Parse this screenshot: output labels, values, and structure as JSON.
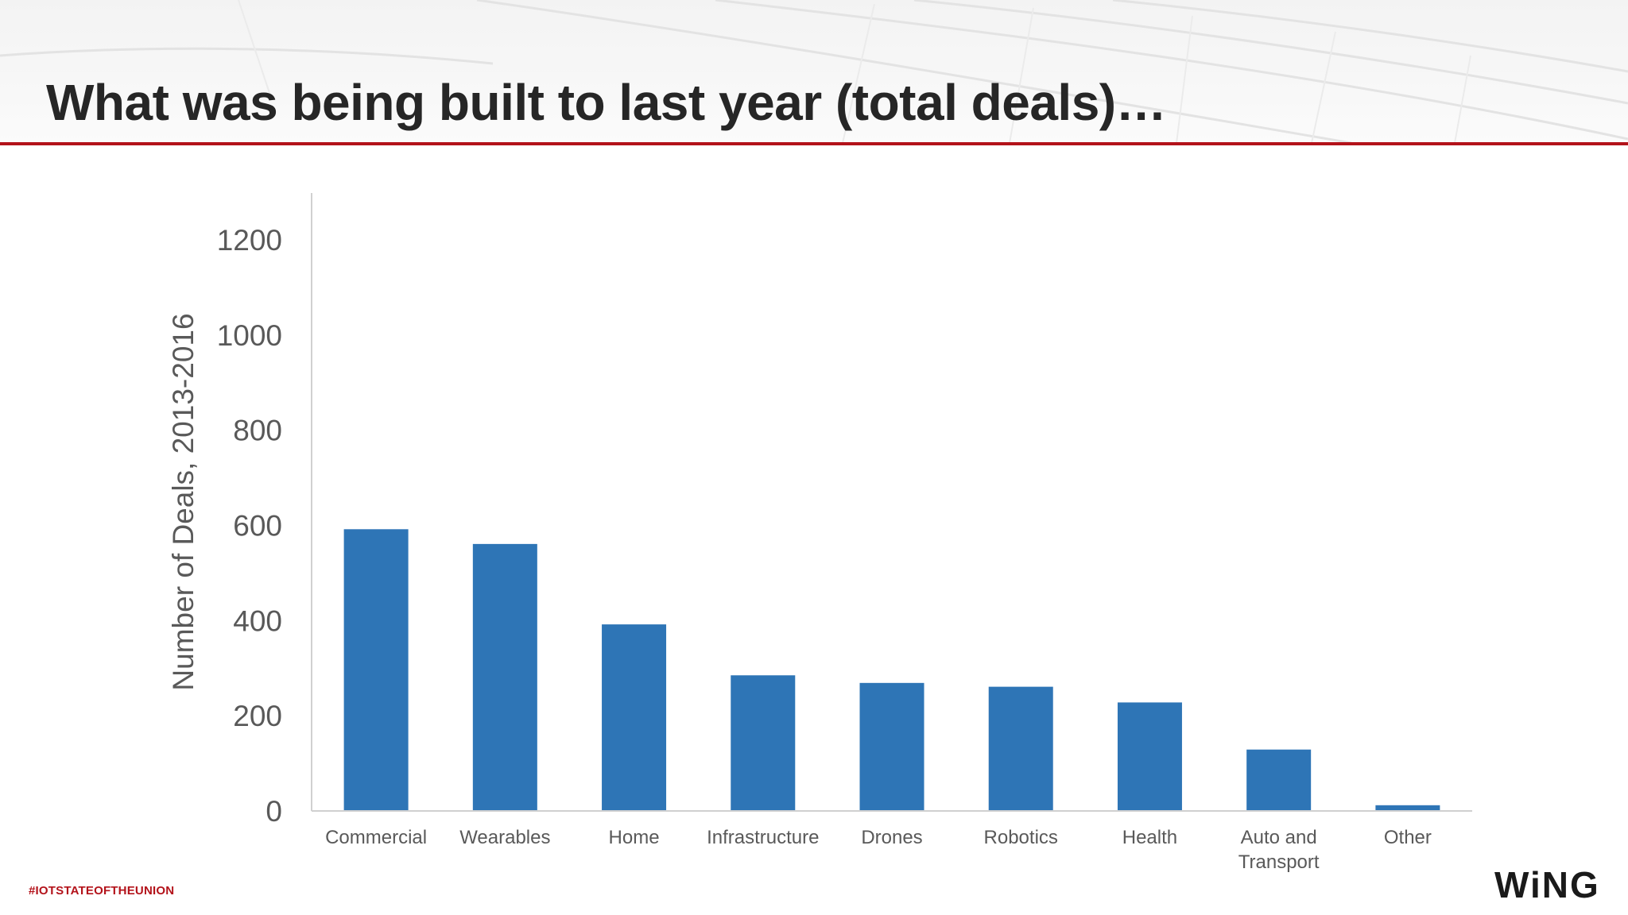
{
  "slide": {
    "title": "What was being built to last year (total deals)…",
    "hashtag": "#IOTSTATEOFTHEUNION",
    "logo_text": "WiNG",
    "accent_color": "#b3121a"
  },
  "chart_data": {
    "type": "bar",
    "categories": [
      "Commercial",
      "Wearables",
      "Home",
      "Infrastructure",
      "Drones",
      "Robotics",
      "Health",
      "Auto and Transport",
      "Other"
    ],
    "category_lines": [
      [
        "Commercial"
      ],
      [
        "Wearables"
      ],
      [
        "Home"
      ],
      [
        "Infrastructure"
      ],
      [
        "Drones"
      ],
      [
        "Robotics"
      ],
      [
        "Health"
      ],
      [
        "Auto and",
        "Transport"
      ],
      [
        "Other"
      ]
    ],
    "values": [
      592,
      561,
      392,
      285,
      269,
      261,
      228,
      129,
      12
    ],
    "title": "",
    "xlabel": "",
    "ylabel": "Number of Deals, 2013-2016",
    "ylim": [
      0,
      1300
    ],
    "yticks": [
      0,
      200,
      400,
      600,
      800,
      1000,
      1200
    ],
    "bar_color": "#2e75b6",
    "grid": false,
    "legend": "none"
  }
}
